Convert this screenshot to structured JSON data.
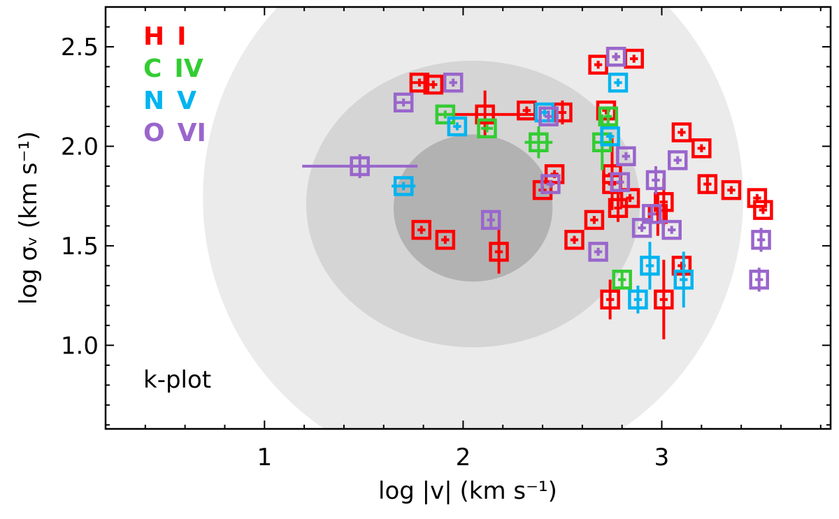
{
  "chart_data": {
    "type": "scatter",
    "xlabel": "log |v| (km s⁻¹)",
    "ylabel": "log σᵥ (km s⁻¹)",
    "xlim": [
      0.2,
      3.85
    ],
    "ylim": [
      0.58,
      2.7
    ],
    "xticks": [
      1,
      2,
      3
    ],
    "xtick_labels": [
      "1",
      "2",
      "3"
    ],
    "yticks": [
      1.0,
      1.5,
      2.0,
      2.5
    ],
    "ytick_labels": [
      "1.0",
      "1.5",
      "2.0",
      "2.5"
    ],
    "annotation": "k-plot",
    "legend_position": "top-left",
    "regions": [
      {
        "name": "outer",
        "cx": 2.05,
        "cy": 1.74,
        "rx": 1.36,
        "ry": 1.39,
        "color": "#ebebeb"
      },
      {
        "name": "middle",
        "cx": 2.05,
        "cy": 1.71,
        "rx": 0.84,
        "ry": 0.72,
        "color": "#d5d5d5"
      },
      {
        "name": "inner",
        "cx": 2.05,
        "cy": 1.69,
        "rx": 0.4,
        "ry": 0.37,
        "color": "#b2b2b2"
      }
    ],
    "series": [
      {
        "name": "H I",
        "color": "#ff0000",
        "points": [
          {
            "x": 1.78,
            "y": 2.32,
            "xerr": 0.05,
            "yerr": 0.02
          },
          {
            "x": 1.85,
            "y": 2.31,
            "xerr": 0.02,
            "yerr": 0.02
          },
          {
            "x": 2.11,
            "y": 2.16,
            "xerr": 0.25,
            "yerr": 0.12
          },
          {
            "x": 2.32,
            "y": 2.18,
            "xerr": 0.02,
            "yerr": 0.02
          },
          {
            "x": 2.5,
            "y": 2.17,
            "xerr": 0.02,
            "yerr": 0.06
          },
          {
            "x": 2.4,
            "y": 1.78,
            "xerr": 0.02,
            "yerr": 0.02
          },
          {
            "x": 2.46,
            "y": 1.86,
            "xerr": 0.02,
            "yerr": 0.02
          },
          {
            "x": 2.68,
            "y": 2.41,
            "xerr": 0.02,
            "yerr": 0.02
          },
          {
            "x": 2.77,
            "y": 2.45,
            "xerr": 0.02,
            "yerr": 0.02
          },
          {
            "x": 2.86,
            "y": 2.44,
            "xerr": 0.02,
            "yerr": 0.02
          },
          {
            "x": 2.72,
            "y": 2.18,
            "xerr": 0.02,
            "yerr": 0.02
          },
          {
            "x": 2.75,
            "y": 1.81,
            "xerr": 0.02,
            "yerr": 0.02
          },
          {
            "x": 2.78,
            "y": 1.69,
            "xerr": 0.02,
            "yerr": 0.07
          },
          {
            "x": 2.75,
            "y": 1.86,
            "xerr": 0.02,
            "yerr": 0.18
          },
          {
            "x": 2.84,
            "y": 1.74,
            "xerr": 0.02,
            "yerr": 0.02
          },
          {
            "x": 2.66,
            "y": 1.63,
            "xerr": 0.02,
            "yerr": 0.02
          },
          {
            "x": 2.56,
            "y": 1.53,
            "xerr": 0.02,
            "yerr": 0.02
          },
          {
            "x": 1.79,
            "y": 1.58,
            "xerr": 0.02,
            "yerr": 0.02
          },
          {
            "x": 1.91,
            "y": 1.53,
            "xerr": 0.02,
            "yerr": 0.02
          },
          {
            "x": 2.18,
            "y": 1.47,
            "xerr": 0.02,
            "yerr": 0.11
          },
          {
            "x": 2.74,
            "y": 1.23,
            "xerr": 0.02,
            "yerr": 0.1
          },
          {
            "x": 2.98,
            "y": 1.66,
            "xerr": 0.02,
            "yerr": 0.11
          },
          {
            "x": 3.01,
            "y": 1.72,
            "xerr": 0.02,
            "yerr": 0.12
          },
          {
            "x": 3.1,
            "y": 2.07,
            "xerr": 0.02,
            "yerr": 0.02
          },
          {
            "x": 3.2,
            "y": 1.99,
            "xerr": 0.02,
            "yerr": 0.02
          },
          {
            "x": 3.23,
            "y": 1.81,
            "xerr": 0.02,
            "yerr": 0.05
          },
          {
            "x": 3.35,
            "y": 1.78,
            "xerr": 0.02,
            "yerr": 0.02
          },
          {
            "x": 3.48,
            "y": 1.74,
            "xerr": 0.02,
            "yerr": 0.02
          },
          {
            "x": 3.51,
            "y": 1.68,
            "xerr": 0.02,
            "yerr": 0.02
          },
          {
            "x": 3.1,
            "y": 1.4,
            "xerr": 0.02,
            "yerr": 0.02
          },
          {
            "x": 3.01,
            "y": 1.23,
            "xerr": 0.02,
            "yerr": 0.2
          }
        ]
      },
      {
        "name": "C IV",
        "color": "#33cc33",
        "points": [
          {
            "x": 1.91,
            "y": 2.16,
            "xerr": 0.05,
            "yerr": 0.02
          },
          {
            "x": 2.12,
            "y": 2.09,
            "xerr": 0.03,
            "yerr": 0.02
          },
          {
            "x": 2.38,
            "y": 2.02,
            "xerr": 0.07,
            "yerr": 0.08
          },
          {
            "x": 2.7,
            "y": 2.02,
            "xerr": 0.05,
            "yerr": 0.14
          },
          {
            "x": 2.73,
            "y": 2.15,
            "xerr": 0.02,
            "yerr": 0.05
          },
          {
            "x": 2.8,
            "y": 1.33,
            "xerr": 0.02,
            "yerr": 0.05
          }
        ]
      },
      {
        "name": "N V",
        "color": "#00b4f0",
        "points": [
          {
            "x": 1.7,
            "y": 1.8,
            "xerr": 0.06,
            "yerr": 0.02
          },
          {
            "x": 1.97,
            "y": 2.1,
            "xerr": 0.02,
            "yerr": 0.02
          },
          {
            "x": 2.41,
            "y": 2.17,
            "xerr": 0.02,
            "yerr": 0.02
          },
          {
            "x": 2.74,
            "y": 2.05,
            "xerr": 0.02,
            "yerr": 0.02
          },
          {
            "x": 2.78,
            "y": 2.32,
            "xerr": 0.02,
            "yerr": 0.02
          },
          {
            "x": 2.88,
            "y": 1.23,
            "xerr": 0.02,
            "yerr": 0.07
          },
          {
            "x": 2.94,
            "y": 1.4,
            "xerr": 0.02,
            "yerr": 0.12
          },
          {
            "x": 3.11,
            "y": 1.33,
            "xerr": 0.02,
            "yerr": 0.14
          }
        ]
      },
      {
        "name": "O VI",
        "color": "#9966cc",
        "points": [
          {
            "x": 1.48,
            "y": 1.9,
            "xerr": 0.29,
            "yerr": 0.06
          },
          {
            "x": 1.7,
            "y": 2.22,
            "xerr": 0.04,
            "yerr": 0.02
          },
          {
            "x": 1.95,
            "y": 2.32,
            "xerr": 0.02,
            "yerr": 0.02
          },
          {
            "x": 2.14,
            "y": 1.63,
            "xerr": 0.02,
            "yerr": 0.04
          },
          {
            "x": 2.43,
            "y": 2.15,
            "xerr": 0.02,
            "yerr": 0.03
          },
          {
            "x": 2.44,
            "y": 1.81,
            "xerr": 0.02,
            "yerr": 0.02
          },
          {
            "x": 2.68,
            "y": 1.47,
            "xerr": 0.02,
            "yerr": 0.02
          },
          {
            "x": 2.77,
            "y": 2.45,
            "xerr": 0.02,
            "yerr": 0.02
          },
          {
            "x": 2.79,
            "y": 1.82,
            "xerr": 0.02,
            "yerr": 0.04
          },
          {
            "x": 2.82,
            "y": 1.95,
            "xerr": 0.02,
            "yerr": 0.02
          },
          {
            "x": 2.9,
            "y": 1.59,
            "xerr": 0.02,
            "yerr": 0.02
          },
          {
            "x": 2.95,
            "y": 1.66,
            "xerr": 0.02,
            "yerr": 0.05
          },
          {
            "x": 2.97,
            "y": 1.83,
            "xerr": 0.02,
            "yerr": 0.07
          },
          {
            "x": 3.05,
            "y": 1.58,
            "xerr": 0.02,
            "yerr": 0.02
          },
          {
            "x": 3.08,
            "y": 1.93,
            "xerr": 0.02,
            "yerr": 0.02
          },
          {
            "x": 3.5,
            "y": 1.53,
            "xerr": 0.02,
            "yerr": 0.06
          },
          {
            "x": 3.49,
            "y": 1.33,
            "xerr": 0.02,
            "yerr": 0.06
          }
        ]
      }
    ]
  }
}
